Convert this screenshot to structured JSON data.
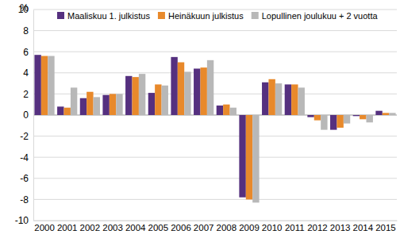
{
  "chart_data": {
    "type": "bar",
    "y_label": "%",
    "categories": [
      "2000",
      "2001",
      "2002",
      "2003",
      "2004",
      "2005",
      "2006",
      "2007",
      "2008",
      "2009",
      "2010",
      "2011",
      "2012",
      "2013",
      "2014",
      "2015"
    ],
    "series": [
      {
        "name": "Maaliskuu 1. julkistus",
        "color": "#55307f",
        "values": [
          5.7,
          0.8,
          1.6,
          1.9,
          3.7,
          2.1,
          5.5,
          4.4,
          0.9,
          -7.8,
          3.1,
          2.9,
          -0.2,
          -1.4,
          -0.1,
          0.4
        ]
      },
      {
        "name": "Heinäkuun julkistus",
        "color": "#e8892b",
        "values": [
          5.6,
          0.7,
          2.2,
          2.0,
          3.6,
          2.9,
          5.0,
          4.5,
          1.0,
          -8.0,
          3.4,
          2.9,
          -0.5,
          -1.2,
          -0.4,
          0.2
        ]
      },
      {
        "name": "Lopullinen joulukuu + 2 vuotta",
        "color": "#b8b8b8",
        "values": [
          5.6,
          2.6,
          1.7,
          2.0,
          3.9,
          2.8,
          4.1,
          5.2,
          0.7,
          -8.3,
          3.0,
          2.6,
          -1.4,
          -0.8,
          -0.7,
          0.2
        ]
      }
    ],
    "ylim": [
      -10,
      10
    ],
    "yticks": [
      -10,
      -8,
      -6,
      -4,
      -2,
      0,
      2,
      4,
      6,
      8,
      10
    ],
    "grid": true,
    "legend": "top"
  }
}
